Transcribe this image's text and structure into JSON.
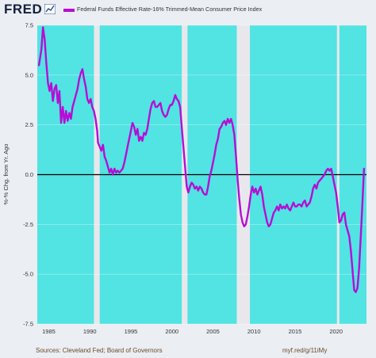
{
  "header": {
    "logo_text": "FRED",
    "logo_icon": "line-chart-icon",
    "legend_label": "Federal Funds Effective Rate-16% Trimmed-Mean Consumer Price Index",
    "legend_color": "#b60ed4"
  },
  "footer": {
    "sources": "Sources: Cleveland Fed; Board of Governors",
    "link": "myf.red/g/11iMy"
  },
  "colors": {
    "recession_band": "#52e3e3",
    "plot_background": "#52e3e3",
    "gap_color": "#e8e8ec",
    "series": "#b60ed4",
    "zero_line": "#000000"
  },
  "chart_data": {
    "type": "line",
    "title": "",
    "xlabel": "",
    "ylabel": "%-% Chg. from Yr. Ago",
    "xlim": [
      1983.6,
      2023.7
    ],
    "ylim": [
      -7.5,
      7.5
    ],
    "x_ticks": [
      1985,
      1990,
      1995,
      2000,
      2005,
      2010,
      2015,
      2020
    ],
    "y_ticks": [
      -7.5,
      -5.0,
      -2.5,
      0.0,
      2.5,
      5.0,
      7.5
    ],
    "y_tick_labels": [
      "-7.5",
      "-5.0",
      "-2.5",
      "0.0",
      "2.5",
      "5.0",
      "7.5"
    ],
    "zero_line": true,
    "background_gaps": [
      [
        1990.5,
        1991.2
      ],
      [
        2001.2,
        2001.9
      ],
      [
        2007.9,
        2009.5
      ],
      [
        2020.1,
        2020.4
      ]
    ],
    "series": [
      {
        "name": "Federal Funds Effective Rate-16% Trimmed-Mean Consumer Price Index",
        "points": [
          [
            1983.8,
            5.5
          ],
          [
            1984.1,
            6.3
          ],
          [
            1984.3,
            7.4
          ],
          [
            1984.5,
            6.8
          ],
          [
            1984.7,
            5.6
          ],
          [
            1984.9,
            4.6
          ],
          [
            1985.1,
            4.2
          ],
          [
            1985.3,
            4.6
          ],
          [
            1985.5,
            3.7
          ],
          [
            1985.7,
            4.3
          ],
          [
            1985.9,
            4.5
          ],
          [
            1986.1,
            3.6
          ],
          [
            1986.3,
            4.2
          ],
          [
            1986.5,
            2.6
          ],
          [
            1986.7,
            3.4
          ],
          [
            1986.9,
            2.6
          ],
          [
            1987.1,
            3.2
          ],
          [
            1987.3,
            2.7
          ],
          [
            1987.5,
            3.1
          ],
          [
            1987.7,
            2.8
          ],
          [
            1987.9,
            3.4
          ],
          [
            1988.1,
            3.7
          ],
          [
            1988.3,
            4.0
          ],
          [
            1988.5,
            4.3
          ],
          [
            1988.7,
            4.8
          ],
          [
            1988.9,
            5.1
          ],
          [
            1989.1,
            5.3
          ],
          [
            1989.3,
            4.8
          ],
          [
            1989.5,
            4.4
          ],
          [
            1989.7,
            3.8
          ],
          [
            1989.9,
            3.6
          ],
          [
            1990.1,
            3.8
          ],
          [
            1990.3,
            3.4
          ],
          [
            1990.5,
            3.2
          ],
          [
            1990.7,
            2.8
          ],
          [
            1990.9,
            2.2
          ],
          [
            1991.0,
            1.6
          ],
          [
            1991.2,
            1.4
          ],
          [
            1991.4,
            1.2
          ],
          [
            1991.6,
            1.5
          ],
          [
            1991.8,
            0.9
          ],
          [
            1992.0,
            0.7
          ],
          [
            1992.2,
            0.4
          ],
          [
            1992.4,
            0.1
          ],
          [
            1992.6,
            0.3
          ],
          [
            1992.8,
            0.0
          ],
          [
            1993.0,
            0.3
          ],
          [
            1993.2,
            0.1
          ],
          [
            1993.4,
            0.2
          ],
          [
            1993.6,
            0.1
          ],
          [
            1993.8,
            0.2
          ],
          [
            1994.0,
            0.3
          ],
          [
            1994.2,
            0.6
          ],
          [
            1994.4,
            1.0
          ],
          [
            1994.6,
            1.4
          ],
          [
            1994.8,
            1.8
          ],
          [
            1995.0,
            2.2
          ],
          [
            1995.2,
            2.6
          ],
          [
            1995.4,
            2.4
          ],
          [
            1995.6,
            2.0
          ],
          [
            1995.8,
            2.3
          ],
          [
            1996.0,
            1.7
          ],
          [
            1996.2,
            1.9
          ],
          [
            1996.4,
            1.7
          ],
          [
            1996.6,
            2.1
          ],
          [
            1996.8,
            2.0
          ],
          [
            1997.0,
            2.3
          ],
          [
            1997.2,
            2.8
          ],
          [
            1997.4,
            3.3
          ],
          [
            1997.6,
            3.6
          ],
          [
            1997.8,
            3.7
          ],
          [
            1998.0,
            3.4
          ],
          [
            1998.2,
            3.4
          ],
          [
            1998.4,
            3.5
          ],
          [
            1998.6,
            3.6
          ],
          [
            1998.8,
            3.2
          ],
          [
            1999.0,
            3.0
          ],
          [
            1999.2,
            2.9
          ],
          [
            1999.4,
            3.0
          ],
          [
            1999.6,
            3.3
          ],
          [
            1999.8,
            3.5
          ],
          [
            2000.0,
            3.5
          ],
          [
            2000.2,
            3.7
          ],
          [
            2000.4,
            4.0
          ],
          [
            2000.6,
            3.8
          ],
          [
            2000.8,
            3.7
          ],
          [
            2001.0,
            3.4
          ],
          [
            2001.2,
            2.4
          ],
          [
            2001.4,
            1.4
          ],
          [
            2001.6,
            0.4
          ],
          [
            2001.8,
            -0.6
          ],
          [
            2002.0,
            -0.9
          ],
          [
            2002.2,
            -0.6
          ],
          [
            2002.4,
            -0.4
          ],
          [
            2002.6,
            -0.5
          ],
          [
            2002.8,
            -0.7
          ],
          [
            2003.0,
            -0.6
          ],
          [
            2003.2,
            -0.8
          ],
          [
            2003.4,
            -0.6
          ],
          [
            2003.6,
            -0.7
          ],
          [
            2003.8,
            -0.9
          ],
          [
            2004.0,
            -1.0
          ],
          [
            2004.2,
            -1.0
          ],
          [
            2004.4,
            -0.6
          ],
          [
            2004.6,
            -0.1
          ],
          [
            2004.8,
            0.2
          ],
          [
            2005.0,
            0.6
          ],
          [
            2005.2,
            1.0
          ],
          [
            2005.4,
            1.5
          ],
          [
            2005.6,
            1.8
          ],
          [
            2005.8,
            2.3
          ],
          [
            2006.0,
            2.4
          ],
          [
            2006.2,
            2.6
          ],
          [
            2006.4,
            2.7
          ],
          [
            2006.6,
            2.5
          ],
          [
            2006.8,
            2.8
          ],
          [
            2007.0,
            2.6
          ],
          [
            2007.2,
            2.8
          ],
          [
            2007.4,
            2.5
          ],
          [
            2007.6,
            2.0
          ],
          [
            2007.8,
            1.0
          ],
          [
            2008.0,
            -0.2
          ],
          [
            2008.2,
            -1.2
          ],
          [
            2008.4,
            -2.0
          ],
          [
            2008.6,
            -2.4
          ],
          [
            2008.8,
            -2.6
          ],
          [
            2009.0,
            -2.5
          ],
          [
            2009.2,
            -2.1
          ],
          [
            2009.4,
            -1.6
          ],
          [
            2009.6,
            -1.0
          ],
          [
            2009.8,
            -0.6
          ],
          [
            2010.0,
            -0.9
          ],
          [
            2010.2,
            -0.7
          ],
          [
            2010.4,
            -1.0
          ],
          [
            2010.6,
            -0.8
          ],
          [
            2010.8,
            -0.6
          ],
          [
            2011.0,
            -1.0
          ],
          [
            2011.2,
            -1.6
          ],
          [
            2011.4,
            -2.0
          ],
          [
            2011.6,
            -2.4
          ],
          [
            2011.8,
            -2.6
          ],
          [
            2012.0,
            -2.5
          ],
          [
            2012.2,
            -2.2
          ],
          [
            2012.4,
            -1.9
          ],
          [
            2012.6,
            -1.8
          ],
          [
            2012.8,
            -1.6
          ],
          [
            2013.0,
            -1.8
          ],
          [
            2013.2,
            -1.5
          ],
          [
            2013.4,
            -1.7
          ],
          [
            2013.6,
            -1.6
          ],
          [
            2013.8,
            -1.7
          ],
          [
            2014.0,
            -1.5
          ],
          [
            2014.2,
            -1.7
          ],
          [
            2014.4,
            -1.8
          ],
          [
            2014.6,
            -1.6
          ],
          [
            2014.8,
            -1.4
          ],
          [
            2015.0,
            -1.6
          ],
          [
            2015.2,
            -1.6
          ],
          [
            2015.4,
            -1.5
          ],
          [
            2015.6,
            -1.5
          ],
          [
            2015.8,
            -1.6
          ],
          [
            2016.0,
            -1.4
          ],
          [
            2016.2,
            -1.3
          ],
          [
            2016.4,
            -1.6
          ],
          [
            2016.6,
            -1.5
          ],
          [
            2016.8,
            -1.4
          ],
          [
            2017.0,
            -1.1
          ],
          [
            2017.2,
            -0.7
          ],
          [
            2017.4,
            -0.5
          ],
          [
            2017.6,
            -0.7
          ],
          [
            2017.8,
            -0.4
          ],
          [
            2018.0,
            -0.3
          ],
          [
            2018.2,
            -0.2
          ],
          [
            2018.4,
            -0.1
          ],
          [
            2018.6,
            0.0
          ],
          [
            2018.8,
            0.2
          ],
          [
            2019.0,
            0.3
          ],
          [
            2019.2,
            0.2
          ],
          [
            2019.4,
            0.3
          ],
          [
            2019.6,
            -0.1
          ],
          [
            2019.8,
            -0.5
          ],
          [
            2020.0,
            -0.9
          ],
          [
            2020.2,
            -1.6
          ],
          [
            2020.4,
            -2.4
          ],
          [
            2020.6,
            -2.3
          ],
          [
            2020.8,
            -2.0
          ],
          [
            2021.0,
            -1.9
          ],
          [
            2021.2,
            -2.5
          ],
          [
            2021.4,
            -2.8
          ],
          [
            2021.6,
            -3.1
          ],
          [
            2021.8,
            -3.8
          ],
          [
            2022.0,
            -4.8
          ],
          [
            2022.2,
            -5.8
          ],
          [
            2022.4,
            -5.9
          ],
          [
            2022.6,
            -5.7
          ],
          [
            2022.8,
            -4.7
          ],
          [
            2023.0,
            -3.1
          ],
          [
            2023.2,
            -1.5
          ],
          [
            2023.4,
            0.3
          ]
        ]
      }
    ]
  }
}
